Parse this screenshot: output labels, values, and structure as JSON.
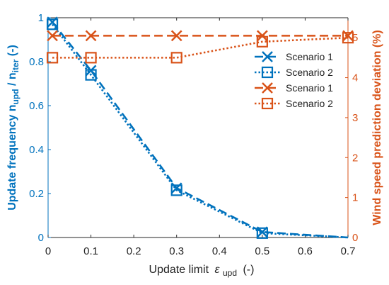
{
  "chart_data": {
    "type": "line",
    "x": [
      0.01,
      0.1,
      0.3,
      0.5,
      0.7
    ],
    "xlabel": "Update limit",
    "xlabel_symbol": "ε",
    "xlabel_subscript": "upd",
    "xlabel_unit": "(-)",
    "xlim": [
      0,
      0.7
    ],
    "xticks": [
      0,
      0.1,
      0.2,
      0.3,
      0.4,
      0.5,
      0.6,
      0.7
    ],
    "xtick_labels": [
      "0",
      "0.1",
      "0.2",
      "0.3",
      "0.4",
      "0.5",
      "0.6",
      "0.7"
    ],
    "left_axis": {
      "label_prefix": "Update frequency n",
      "label_sub1": "upd",
      "label_mid": " / n",
      "label_sub2": "iter",
      "label_suffix": " (-)",
      "ylim": [
        0,
        1
      ],
      "ticks": [
        0,
        0.2,
        0.4,
        0.6,
        0.8,
        1
      ],
      "tick_labels": [
        "0",
        "0.2",
        "0.4",
        "0.6",
        "0.8",
        "1"
      ],
      "color": "#0072BD"
    },
    "right_axis": {
      "label": "Wind speed prediction deviation (%)",
      "ylim": [
        0,
        5.5
      ],
      "ticks": [
        0,
        1,
        2,
        3,
        4,
        5
      ],
      "tick_labels": [
        "0",
        "1",
        "2",
        "3",
        "4",
        "5"
      ],
      "color": "#D95319"
    },
    "grid": false,
    "legend_position": "top-right",
    "series": [
      {
        "name": "Scenario 1",
        "axis": "left",
        "linestyle": "dashed",
        "marker": "x",
        "color": "#0072BD",
        "x": [
          0.01,
          0.1,
          0.3,
          0.5,
          0.7
        ],
        "values": [
          0.98,
          0.76,
          0.225,
          0.025,
          0.0
        ]
      },
      {
        "name": "Scenario 2",
        "axis": "left",
        "linestyle": "dotted",
        "marker": "square",
        "color": "#0072BD",
        "x": [
          0.01,
          0.1,
          0.3,
          0.5,
          0.7
        ],
        "values": [
          0.97,
          0.74,
          0.215,
          0.02,
          0.0
        ]
      },
      {
        "name": "Scenario 1",
        "axis": "right",
        "linestyle": "dashed",
        "marker": "x",
        "color": "#D95319",
        "x": [
          0.01,
          0.1,
          0.3,
          0.5,
          0.7
        ],
        "values": [
          5.05,
          5.05,
          5.05,
          5.05,
          5.05
        ]
      },
      {
        "name": "Scenario 2",
        "axis": "right",
        "linestyle": "dotted",
        "marker": "square",
        "color": "#D95319",
        "x": [
          0.01,
          0.1,
          0.3,
          0.5,
          0.7
        ],
        "values": [
          4.5,
          4.5,
          4.5,
          4.9,
          5.0
        ]
      }
    ]
  }
}
